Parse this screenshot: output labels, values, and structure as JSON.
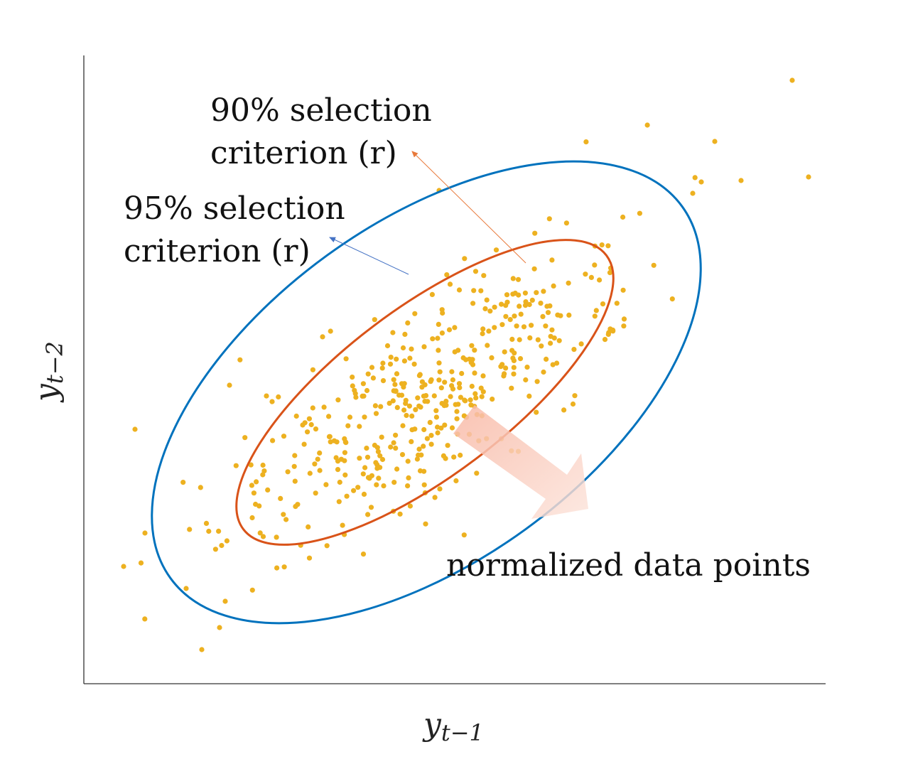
{
  "annotations": {
    "inner_label_line1": "90% selection",
    "inner_label_line2": "criterion (r)",
    "outer_label_line1": "95% selection",
    "outer_label_line2": "criterion (r)",
    "points_label": "normalized data points"
  },
  "axes": {
    "x_label_base": "y",
    "x_label_sub": "t−1",
    "y_label_base": "y",
    "y_label_sub": "t−2"
  },
  "colors": {
    "points": "#EDB120",
    "inner_ellipse": "#D95319",
    "outer_ellipse": "#0072BD",
    "inner_arrow": "#E8793A",
    "outer_arrow": "#4472C4",
    "big_arrow": "#F8B9A6",
    "axis": "#333333"
  },
  "icons": {
    "big_arrow": "arrow-down-right-icon"
  }
}
